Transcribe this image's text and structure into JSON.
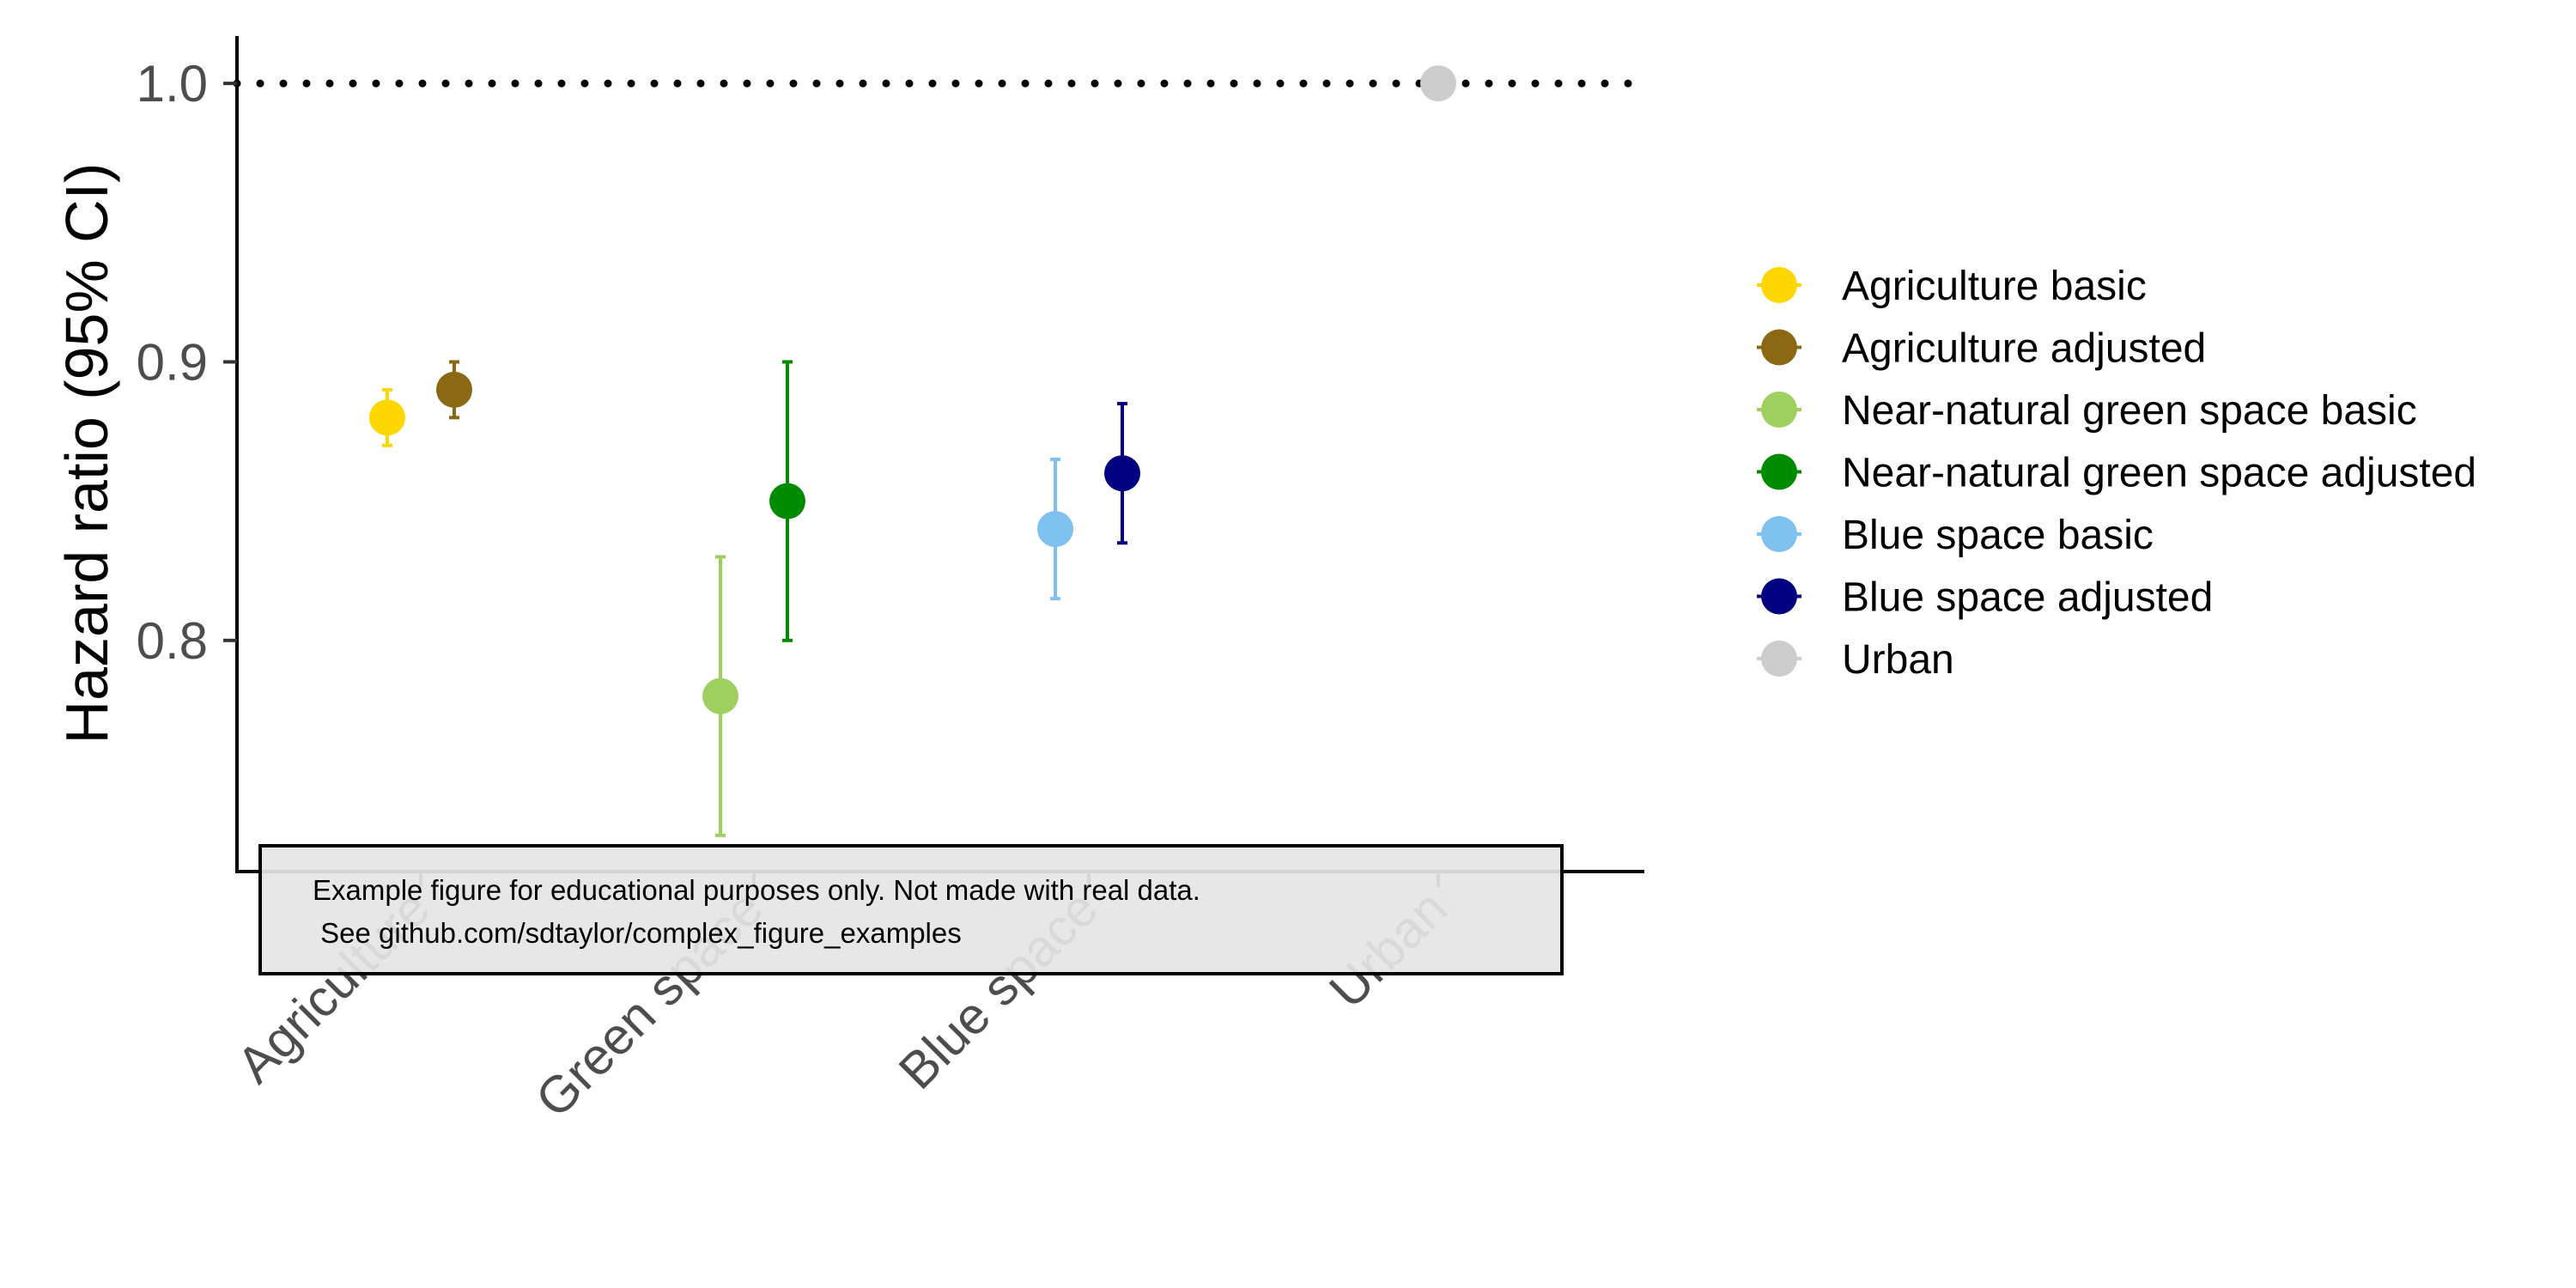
{
  "chart_data": {
    "type": "scatter",
    "ylabel": "Hazard ratio (95% CI)",
    "xlabel": "",
    "ylim": [
      0.717,
      1.017
    ],
    "yticks": [
      0.8,
      0.9,
      1.0
    ],
    "ytick_labels": [
      "0.8",
      "0.9",
      "1.0"
    ],
    "categories": [
      "Agriculture",
      "Green space",
      "Blue space",
      "Urban"
    ],
    "reference_line": {
      "y": 1.0,
      "style": "dotted"
    },
    "series": [
      {
        "name": "Agriculture basic",
        "category": "Agriculture",
        "offset": -0.1,
        "y": 0.88,
        "lower": 0.87,
        "upper": 0.89,
        "color": "#FFD700"
      },
      {
        "name": "Agriculture adjusted",
        "category": "Agriculture",
        "offset": 0.1,
        "y": 0.89,
        "lower": 0.88,
        "upper": 0.9,
        "color": "#8B6914"
      },
      {
        "name": "Near-natural green space basic",
        "category": "Green space",
        "offset": -0.1,
        "y": 0.78,
        "lower": 0.73,
        "upper": 0.83,
        "color": "#9FCF5F"
      },
      {
        "name": "Near-natural green space adjusted",
        "category": "Green space",
        "offset": 0.1,
        "y": 0.85,
        "lower": 0.8,
        "upper": 0.9,
        "color": "#008B00"
      },
      {
        "name": "Blue space basic",
        "category": "Blue space",
        "offset": -0.1,
        "y": 0.84,
        "lower": 0.815,
        "upper": 0.865,
        "color": "#7EC0EE"
      },
      {
        "name": "Blue space adjusted",
        "category": "Blue space",
        "offset": 0.1,
        "y": 0.86,
        "lower": 0.835,
        "upper": 0.885,
        "color": "#000080"
      },
      {
        "name": "Urban",
        "category": "Urban",
        "offset": 0,
        "y": 1.0,
        "lower": 1.0,
        "upper": 1.0,
        "color": "#CCCCCC"
      }
    ],
    "legend_position": "right",
    "grid": false,
    "annotation": {
      "line1": "Example figure for educational purposes only. Not made with real data.",
      "line2": " See github.com/sdtaylor/complex_figure_examples"
    }
  }
}
